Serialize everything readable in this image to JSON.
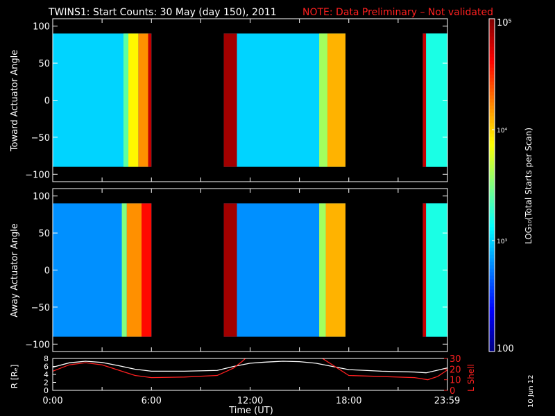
{
  "title": {
    "main": "TWINS1: Start Counts: 30 May (day 150), 2011",
    "note": "NOTE: Data Preliminary – Not validated"
  },
  "side_stamp": "10 Jun 12",
  "colors": {
    "background": "#000000",
    "axes": "#ffffff",
    "note": "#ff2020",
    "r_line": "#ffffff",
    "lshell_line": "#ff2020"
  },
  "chart_data": [
    {
      "type": "heatmap",
      "name": "toward",
      "ylabel": "Toward Actuator Angle",
      "ylim": [
        -110,
        110
      ],
      "yticks": [
        "100",
        "50",
        "0",
        "−50",
        "−100"
      ],
      "ytick_values": [
        100,
        50,
        0,
        -50,
        -100
      ],
      "angle_range": [
        -90,
        90
      ],
      "data_intervals_hours": [
        [
          0,
          6.0
        ],
        [
          10.4,
          17.8
        ],
        [
          22.5,
          23.98
        ]
      ],
      "background_level_log10": 3.0,
      "bright_bands": [
        {
          "start_h": 4.3,
          "end_h": 4.6,
          "log10": 3.4
        },
        {
          "start_h": 4.6,
          "end_h": 5.2,
          "log10": 3.9
        },
        {
          "start_h": 5.2,
          "end_h": 5.8,
          "log10": 4.2
        },
        {
          "start_h": 5.8,
          "end_h": 6.0,
          "log10": 4.8
        },
        {
          "start_h": 10.4,
          "end_h": 11.2,
          "log10": 4.9
        },
        {
          "start_h": 16.2,
          "end_h": 16.7,
          "log10": 3.6
        },
        {
          "start_h": 16.7,
          "end_h": 17.8,
          "log10": 4.1
        },
        {
          "start_h": 22.5,
          "end_h": 22.7,
          "log10": 4.8
        },
        {
          "start_h": 22.7,
          "end_h": 23.98,
          "log10": 3.2
        }
      ]
    },
    {
      "type": "heatmap",
      "name": "away",
      "ylabel": "Away Actuator Angle",
      "ylim": [
        -110,
        110
      ],
      "yticks": [
        "100",
        "50",
        "0",
        "−50",
        "−100"
      ],
      "ytick_values": [
        100,
        50,
        0,
        -50,
        -100
      ],
      "angle_range": [
        -90,
        90
      ],
      "data_intervals_hours": [
        [
          0,
          6.0
        ],
        [
          10.4,
          17.8
        ],
        [
          22.5,
          23.98
        ]
      ],
      "background_level_log10": 2.8,
      "bright_bands": [
        {
          "start_h": 4.2,
          "end_h": 4.5,
          "log10": 3.5
        },
        {
          "start_h": 4.5,
          "end_h": 5.4,
          "log10": 4.2
        },
        {
          "start_h": 5.4,
          "end_h": 6.0,
          "log10": 4.6
        },
        {
          "start_h": 10.4,
          "end_h": 11.2,
          "log10": 4.9
        },
        {
          "start_h": 16.2,
          "end_h": 16.6,
          "log10": 3.6
        },
        {
          "start_h": 16.6,
          "end_h": 17.8,
          "log10": 4.1
        },
        {
          "start_h": 22.5,
          "end_h": 22.7,
          "log10": 4.8
        },
        {
          "start_h": 22.7,
          "end_h": 23.98,
          "log10": 3.2
        }
      ]
    },
    {
      "type": "line",
      "name": "orbit",
      "ylabel": "R [Rₑ]",
      "y2label": "L Shell",
      "xlabel": "Time (UT)",
      "xlim": [
        0,
        24
      ],
      "xticks": [
        "0:00",
        "6:00",
        "12:00",
        "18:00",
        "23:59"
      ],
      "xtick_values": [
        0,
        6,
        12,
        18,
        23.98
      ],
      "ylim": [
        0,
        8
      ],
      "yticks": [
        "0",
        "2",
        "4",
        "6",
        "8"
      ],
      "ytick_values": [
        0,
        2,
        4,
        6,
        8
      ],
      "y2lim": [
        0,
        30
      ],
      "y2ticks": [
        "0",
        "10",
        "20",
        "30"
      ],
      "y2tick_values": [
        0,
        10,
        20,
        30
      ],
      "series": [
        {
          "axis": "left",
          "x": [
            0,
            1,
            2,
            3,
            4,
            5,
            6,
            8,
            10,
            11,
            12,
            13,
            14,
            15,
            16,
            17,
            18,
            20,
            22,
            22.7,
            23.98
          ],
          "y": [
            5.8,
            6.9,
            7.3,
            7.0,
            6.2,
            5.3,
            4.8,
            4.8,
            5.0,
            6.0,
            6.8,
            7.1,
            7.3,
            7.2,
            6.8,
            6.0,
            5.2,
            4.8,
            4.6,
            4.4,
            5.6
          ]
        },
        {
          "axis": "right",
          "x": [
            0,
            1,
            2,
            3,
            4,
            5,
            6,
            8,
            10,
            11,
            11.5,
            12,
            16,
            17,
            18,
            20,
            22,
            22.8,
            23.4,
            23.98
          ],
          "y": [
            18,
            24,
            26,
            24,
            19,
            14,
            12,
            12.5,
            14,
            21,
            27,
            34,
            34,
            24,
            14,
            13,
            12,
            10,
            13,
            19
          ]
        }
      ]
    },
    {
      "type": "colorbar",
      "label": "LOG₁₀(Total Starts per Scan)",
      "scale": "log",
      "range": [
        100,
        100000
      ],
      "tick_labels": [
        "100",
        "10³",
        "10⁴",
        "10⁵"
      ],
      "tick_values": [
        100,
        1000,
        10000,
        100000
      ]
    }
  ]
}
